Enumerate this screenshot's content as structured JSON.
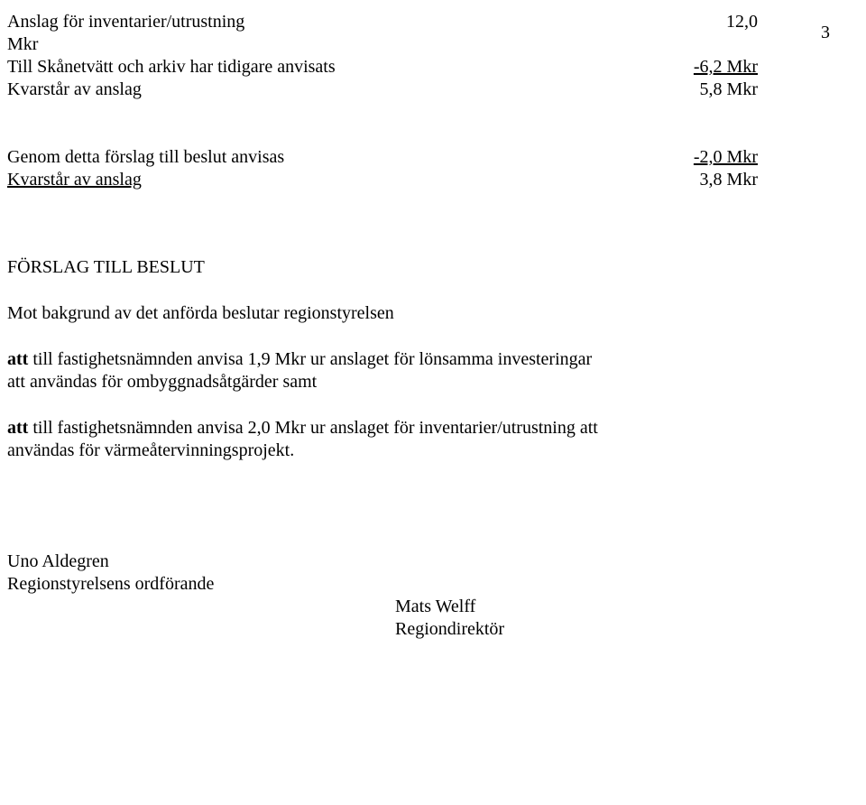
{
  "pageNumber": "3",
  "block1": {
    "line1_left": "Anslag för inventarier/utrustning",
    "line1_right": "12,0",
    "line2_left": "Mkr",
    "line3_left": "Till Skånetvätt och arkiv har tidigare anvisats",
    "line3_right": "-6,2 Mkr",
    "line4_left": "Kvarstår av anslag",
    "line4_right": "5,8 Mkr"
  },
  "block2": {
    "line1_left": "Genom detta förslag till beslut anvisas",
    "line1_right": "-2,0 Mkr",
    "line2_left": "Kvarstår av anslag",
    "line2_right": "3,8 Mkr"
  },
  "heading": "FÖRSLAG TILL BESLUT",
  "intro": "Mot bakgrund av det anförda beslutar regionstyrelsen",
  "para1": {
    "bold": "att",
    "rest1": " till fastighetsnämnden anvisa 1,9 Mkr ur anslaget för lönsamma investeringar",
    "rest2": "att användas för ombyggnadsåtgärder samt"
  },
  "para2": {
    "bold": "att",
    "rest1": " till fastighetsnämnden anvisa 2,0 Mkr ur anslaget för inventarier/utrustning att",
    "rest2": "användas för värmeåtervinningsprojekt."
  },
  "sig": {
    "name1": "Uno Aldegren",
    "title1": "Regionstyrelsens ordförande",
    "name2": "Mats Welff",
    "title2": "Regiondirektör"
  }
}
